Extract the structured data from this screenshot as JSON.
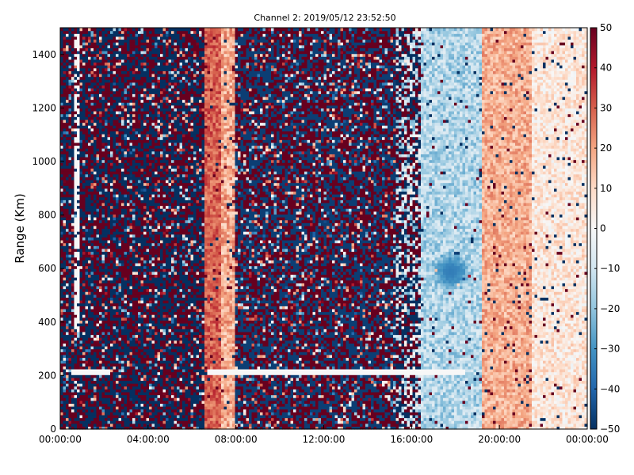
{
  "chart_data": {
    "type": "heatmap",
    "title": "Channel 2: 2019/05/12 23:52:50",
    "xlabel": "",
    "ylabel": "Range (Km)",
    "x_range_hours": [
      0,
      24
    ],
    "ylim": [
      0,
      1500
    ],
    "x_ticks": [
      {
        "value": 0,
        "label": "00:00:00"
      },
      {
        "value": 4,
        "label": "04:00:00"
      },
      {
        "value": 8,
        "label": "08:00:00"
      },
      {
        "value": 12,
        "label": "12:00:00"
      },
      {
        "value": 16,
        "label": "16:00:00"
      },
      {
        "value": 20,
        "label": "20:00:00"
      },
      {
        "value": 24,
        "label": "00:00:00"
      }
    ],
    "y_ticks": [
      0,
      200,
      400,
      600,
      800,
      1000,
      1200,
      1400
    ],
    "colorbar": {
      "min": -50,
      "max": 50,
      "ticks": [
        50,
        40,
        30,
        20,
        10,
        0,
        -10,
        -20,
        -30,
        -40,
        -50
      ],
      "colormap": "RdBu_r",
      "colors": [
        "#053061",
        "#2166ac",
        "#4393c3",
        "#92c5de",
        "#d1e5f0",
        "#f7f7f7",
        "#fddbc7",
        "#f4a582",
        "#d6604d",
        "#b2182b",
        "#67001f"
      ]
    },
    "regions": [
      {
        "x_start": 0.0,
        "x_end": 6.6,
        "pattern": "noise",
        "mean": 0,
        "spread": 50
      },
      {
        "x_start": 6.6,
        "x_end": 7.3,
        "pattern": "band",
        "mean": 30,
        "spread": 8
      },
      {
        "x_start": 7.3,
        "x_end": 8.0,
        "pattern": "band",
        "mean": 18,
        "spread": 10
      },
      {
        "x_start": 8.0,
        "x_end": 15.3,
        "pattern": "noise",
        "mean": 5,
        "spread": 48
      },
      {
        "x_start": 15.3,
        "x_end": 16.4,
        "pattern": "mixed",
        "mean": 0,
        "spread": 35
      },
      {
        "x_start": 16.4,
        "x_end": 19.2,
        "pattern": "band",
        "mean": -15,
        "spread": 10
      },
      {
        "x_start": 19.2,
        "x_end": 21.5,
        "pattern": "band",
        "mean": 18,
        "spread": 8
      },
      {
        "x_start": 21.5,
        "x_end": 24.0,
        "pattern": "band",
        "mean": 6,
        "spread": 9
      }
    ],
    "features": [
      {
        "type": "horizontal_line",
        "range_km": 215,
        "x_start": 0.5,
        "x_end": 2.3,
        "value": 0
      },
      {
        "type": "horizontal_line",
        "range_km": 215,
        "x_start": 6.7,
        "x_end": 18.5,
        "value": 0
      },
      {
        "type": "vertical_stripe",
        "x": 0.75,
        "y_start": 360,
        "y_end": 1480,
        "value": 0
      },
      {
        "type": "blob",
        "x": 17.8,
        "range_km": 590,
        "value": -35
      }
    ]
  }
}
